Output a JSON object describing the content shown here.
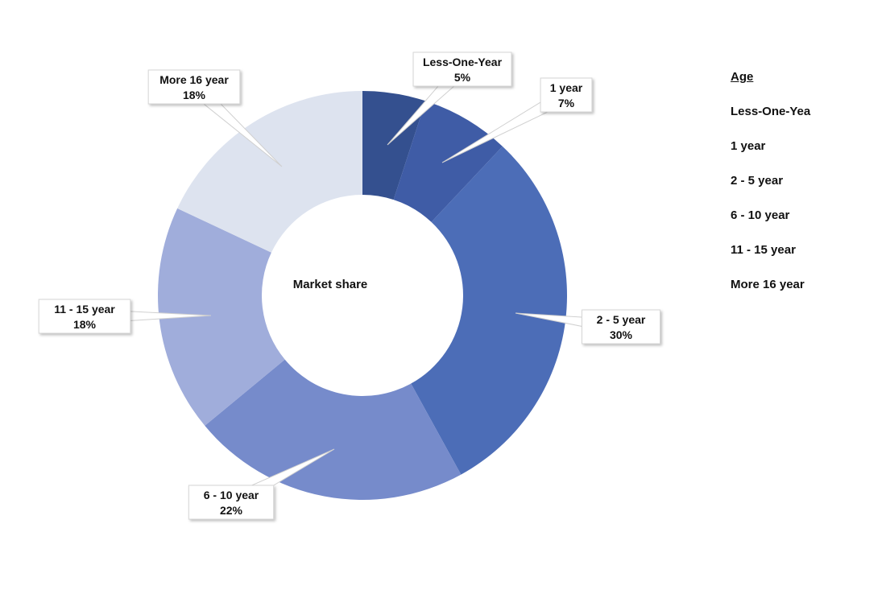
{
  "chart_data": {
    "type": "pie",
    "variant": "donut",
    "title": "Market share",
    "categories": [
      "Less-One-Year",
      "1 year",
      "2 - 5 year",
      "6 - 10 year",
      "11 - 15 year",
      "More 16 year"
    ],
    "values": [
      5,
      7,
      30,
      22,
      18,
      18
    ],
    "value_labels": [
      "5%",
      "7%",
      "30%",
      "22%",
      "18%",
      "18%"
    ],
    "colors": [
      "#34508f",
      "#3f5ca6",
      "#4c6db7",
      "#768bcb",
      "#a0addb",
      "#dde3ef"
    ],
    "legend": {
      "title": "Age",
      "placement": "right",
      "entries": [
        "Less-One-Yea",
        "1 year",
        "2 - 5 year",
        "6 - 10 year",
        "11 - 15 year",
        "More 16 year"
      ]
    }
  }
}
